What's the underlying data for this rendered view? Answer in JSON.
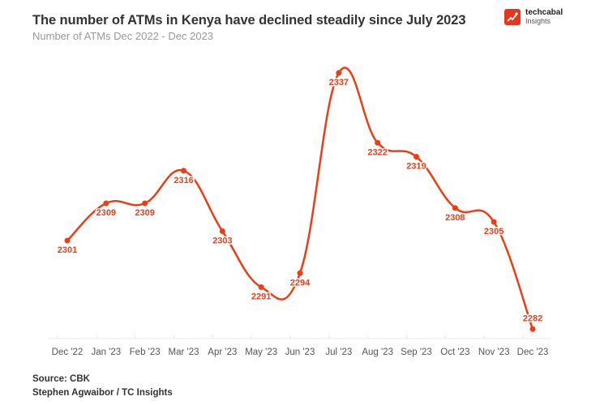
{
  "header": {
    "title": "The number of ATMs in Kenya have declined steadily since July 2023",
    "subtitle": "Number of ATMs Dec 2022 - Dec 2023"
  },
  "logo": {
    "name": "techcabal",
    "sub": "Insights",
    "icon": "trend-up-icon",
    "color": "#e8351e"
  },
  "footer": {
    "source": "Source: CBK",
    "credit": "Stephen Agwaibor / TC Insights"
  },
  "chart_data": {
    "type": "line",
    "title": "The number of ATMs in Kenya have declined steadily since July 2023",
    "subtitle": "Number of ATMs Dec 2022 - Dec 2023",
    "xlabel": "",
    "ylabel": "",
    "categories": [
      "Dec '22",
      "Jan '23",
      "Feb '23",
      "Mar '23",
      "Apr '23",
      "May '23",
      "Jun '23",
      "Jul '23",
      "Aug '23",
      "Sep '23",
      "Oct '23",
      "Nov '23",
      "Dec '23"
    ],
    "series": [
      {
        "name": "Number of ATMs",
        "values": [
          2301,
          2309,
          2309,
          2316,
          2303,
          2291,
          2294,
          2337,
          2322,
          2319,
          2308,
          2305,
          2282
        ],
        "color": "#f03c14"
      }
    ],
    "ylim": [
      2280,
      2338
    ],
    "grid": false,
    "legend": "none",
    "data_labels": true,
    "curve": "smooth"
  }
}
